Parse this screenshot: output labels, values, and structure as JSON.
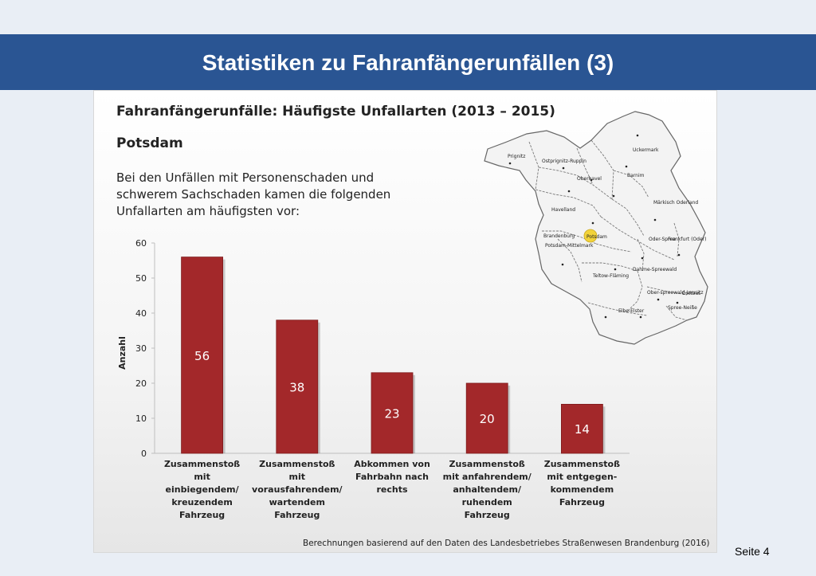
{
  "header": {
    "title": "Statistiken zu Fahranfängerunfällen (3)"
  },
  "chart_title": "Fahranfängerunfälle: Häufigste Unfallarten (2013 – 2015)",
  "city": "Potsdam",
  "description": "Bei den Unfällen mit Personenschaden und schwerem Sachschaden kamen die folgenden Unfallarten am häufigsten vor:",
  "footer_note": "Berechnungen basierend auf den Daten des Landesbetriebes Straßenwesen Brandenburg (2016)",
  "page_number": "Seite 4",
  "colors": {
    "header": "#2a5593",
    "bar": "#a3282a",
    "bar_label": "#ffffff",
    "highlight": "#f2d33a"
  },
  "map": {
    "regions": [
      "Prignitz",
      "Ostprignitz-Ruppin",
      "Oberhavel",
      "Uckermark",
      "Barnim",
      "Havelland",
      "Märkisch Oderland",
      "Brandenburg",
      "Potsdam",
      "Frankfurt (Oder)",
      "Oder-Spree",
      "Potsdam-Mittelmark",
      "Teltow-Fläming",
      "Dahme-Spreewald",
      "Ober-spreewald-Lausitz",
      "Cottbus",
      "Spree-Neiße",
      "Elbe-Elster"
    ],
    "highlight": "Potsdam"
  },
  "chart_data": {
    "type": "bar",
    "ylabel": "Anzahl",
    "xlabel": "",
    "ylim": [
      0,
      60
    ],
    "yticks": [
      0,
      10,
      20,
      30,
      40,
      50,
      60
    ],
    "categories": [
      [
        "Zusammenstoß",
        "mit",
        "einbiegendem/",
        "kreuzendem",
        "Fahrzeug"
      ],
      [
        "Zusammenstoß",
        "mit",
        "vorausfahrendem/",
        "wartendem",
        "Fahrzeug"
      ],
      [
        "Abkommen von",
        "Fahrbahn nach",
        "rechts"
      ],
      [
        "Zusammenstoß",
        "mit anfahrendem/",
        "anhaltendem/",
        "ruhendem",
        "Fahrzeug"
      ],
      [
        "Zusammenstoß",
        "mit entgegen-",
        "kommendem",
        "Fahrzeug"
      ]
    ],
    "values": [
      56,
      38,
      23,
      20,
      14
    ]
  }
}
